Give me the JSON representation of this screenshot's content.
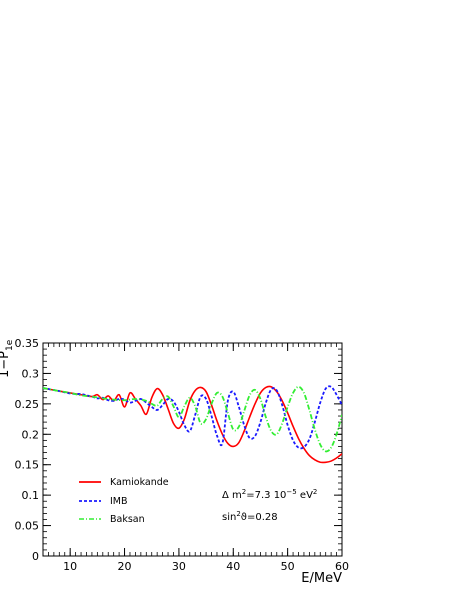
{
  "chart_data": {
    "type": "line",
    "xlabel": "E/MeV",
    "ylabel": "1−P",
    "ylabel_sub": "1e",
    "xlim": [
      5,
      60
    ],
    "ylim": [
      0,
      0.35
    ],
    "grid": false,
    "legend_placement": "bottom-left",
    "x_ticks": [
      10,
      20,
      30,
      40,
      50,
      60
    ],
    "y_ticks": [
      0,
      0.05,
      0.1,
      0.15,
      0.2,
      0.25,
      0.3,
      0.35
    ],
    "x_tick_labels": [
      "10",
      "20",
      "30",
      "40",
      "50",
      "60"
    ],
    "y_tick_labels": [
      "0",
      "0.05",
      "0.1",
      "0.15",
      "0.2",
      "0.25",
      "0.3",
      "0.35"
    ],
    "annotations": {
      "dm2_prefix": "Δ m",
      "dm2_rest": "=7.3 10",
      "dm2_exp": "−5",
      "dm2_unit": " eV",
      "sin2_prefix": "sin",
      "sin2_rest": "ϑ=0.28",
      "sup2": "2"
    },
    "series": [
      {
        "name": "Kamiokande",
        "color": "#ff0000",
        "dash": "solid",
        "x": [
          5,
          8,
          10,
          12,
          14,
          15,
          16,
          17,
          18,
          19,
          20,
          21,
          22,
          23,
          24,
          25,
          26,
          27,
          28,
          29,
          30,
          31,
          32,
          33,
          34,
          35,
          36,
          37,
          38,
          39,
          40,
          41,
          42,
          43,
          44,
          45,
          46,
          47,
          48,
          49,
          50,
          51,
          52,
          53,
          54,
          55,
          56,
          57,
          58,
          59,
          60
        ],
        "y": [
          0.276,
          0.271,
          0.268,
          0.265,
          0.262,
          0.265,
          0.257,
          0.263,
          0.255,
          0.265,
          0.245,
          0.268,
          0.258,
          0.247,
          0.233,
          0.26,
          0.275,
          0.265,
          0.242,
          0.218,
          0.21,
          0.225,
          0.255,
          0.272,
          0.277,
          0.27,
          0.248,
          0.222,
          0.2,
          0.185,
          0.18,
          0.186,
          0.205,
          0.228,
          0.25,
          0.268,
          0.277,
          0.278,
          0.27,
          0.255,
          0.235,
          0.213,
          0.193,
          0.177,
          0.165,
          0.158,
          0.154,
          0.154,
          0.156,
          0.161,
          0.168
        ]
      },
      {
        "name": "IMB",
        "color": "#1a1aff",
        "dash": "dashed",
        "x": [
          5,
          8,
          10,
          12,
          13,
          14,
          15,
          16,
          17,
          18,
          19,
          20,
          21,
          22,
          23,
          24,
          25,
          26,
          27,
          28,
          29,
          30,
          31,
          32,
          33,
          34,
          35,
          36,
          37,
          38,
          39,
          40,
          41,
          42,
          43,
          44,
          45,
          46,
          47,
          48,
          49,
          50,
          51,
          52,
          53,
          54,
          55,
          56,
          57,
          58,
          59,
          60
        ],
        "y": [
          0.276,
          0.271,
          0.267,
          0.266,
          0.264,
          0.262,
          0.259,
          0.26,
          0.256,
          0.255,
          0.258,
          0.257,
          0.252,
          0.255,
          0.258,
          0.252,
          0.245,
          0.24,
          0.248,
          0.258,
          0.254,
          0.237,
          0.215,
          0.205,
          0.232,
          0.262,
          0.258,
          0.23,
          0.198,
          0.185,
          0.255,
          0.27,
          0.246,
          0.215,
          0.194,
          0.197,
          0.22,
          0.252,
          0.274,
          0.272,
          0.248,
          0.215,
          0.19,
          0.178,
          0.179,
          0.192,
          0.22,
          0.252,
          0.275,
          0.278,
          0.265,
          0.248
        ]
      },
      {
        "name": "Baksan",
        "color": "#33ee33",
        "dash": "dashdot",
        "x": [
          5,
          8,
          10,
          12,
          14,
          16,
          18,
          20,
          22,
          24,
          25,
          26,
          27,
          28,
          29,
          30,
          31,
          32,
          33,
          34,
          35,
          36,
          37,
          38,
          39,
          40,
          41,
          42,
          43,
          44,
          45,
          46,
          47,
          48,
          49,
          50,
          51,
          52,
          53,
          54,
          55,
          56,
          57,
          58,
          59,
          60
        ],
        "y": [
          0.276,
          0.271,
          0.268,
          0.264,
          0.262,
          0.259,
          0.257,
          0.256,
          0.258,
          0.255,
          0.25,
          0.247,
          0.258,
          0.262,
          0.246,
          0.228,
          0.246,
          0.26,
          0.246,
          0.218,
          0.225,
          0.25,
          0.268,
          0.262,
          0.235,
          0.208,
          0.212,
          0.238,
          0.264,
          0.273,
          0.258,
          0.228,
          0.205,
          0.2,
          0.218,
          0.245,
          0.268,
          0.278,
          0.268,
          0.24,
          0.208,
          0.183,
          0.172,
          0.178,
          0.2,
          0.232
        ]
      }
    ]
  }
}
